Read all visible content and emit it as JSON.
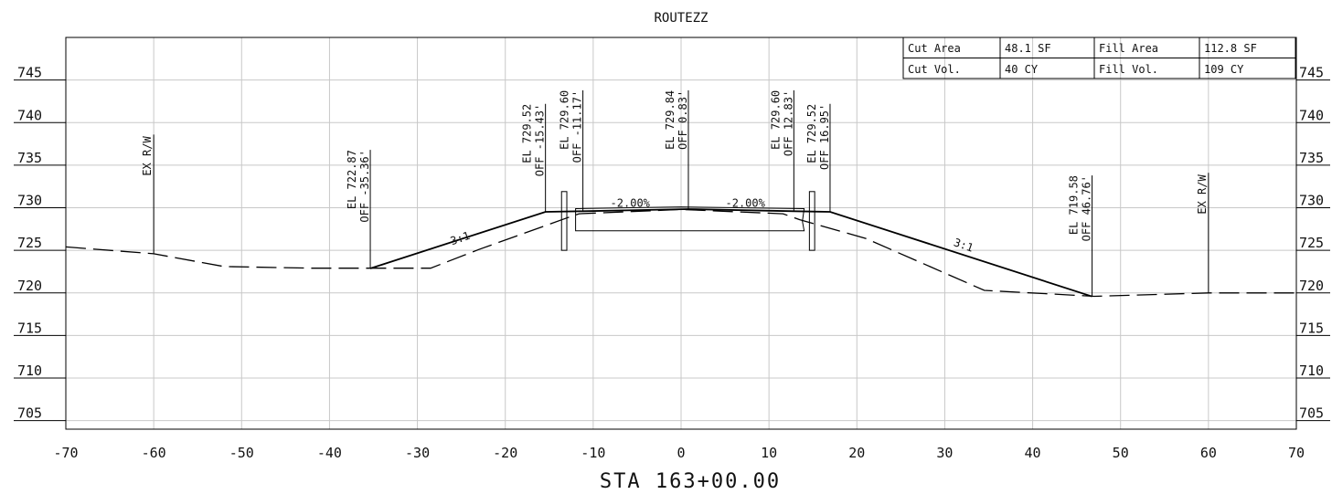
{
  "title": "ROUTEZZ",
  "station": "STA 163+00.00",
  "quantities": [
    [
      "Cut Area",
      "48.1 SF",
      "Fill Area",
      "112.8 SF"
    ],
    [
      "Cut Vol.",
      "40 CY",
      "Fill Vol.",
      "109 CY"
    ]
  ],
  "axes": {
    "x_ticks": [
      -70,
      -60,
      -50,
      -40,
      -30,
      -20,
      -10,
      0,
      10,
      20,
      30,
      40,
      50,
      60,
      70
    ],
    "x_range": [
      -70,
      70
    ],
    "y_ticks": [
      705,
      710,
      715,
      720,
      725,
      730,
      735,
      740,
      745
    ],
    "y_range": [
      704,
      750
    ],
    "grid": true
  },
  "existing_ground": [
    [
      -70,
      725.4
    ],
    [
      -60,
      724.6
    ],
    [
      -52,
      723.1
    ],
    [
      -42,
      722.9
    ],
    [
      -28.5,
      722.9
    ],
    [
      -23,
      725.1
    ],
    [
      -13,
      728.8
    ],
    [
      -11.6,
      729.3
    ],
    [
      0,
      729.8
    ],
    [
      11.6,
      729.3
    ],
    [
      13.5,
      728.6
    ],
    [
      21,
      726.4
    ],
    [
      34.5,
      720.3
    ],
    [
      47,
      719.6
    ],
    [
      60,
      720.0
    ],
    [
      70,
      720.0
    ]
  ],
  "design_section": [
    [
      -35.36,
      722.87
    ],
    [
      -15.43,
      729.52
    ],
    [
      -11.17,
      729.6
    ],
    [
      0.83,
      729.84
    ],
    [
      12.83,
      729.6
    ],
    [
      16.95,
      729.52
    ],
    [
      46.76,
      719.58
    ]
  ],
  "pavement_box": [
    [
      -12,
      729.9
    ],
    [
      0,
      730.1
    ],
    [
      14,
      729.9
    ],
    [
      13.8,
      728.4
    ],
    [
      14,
      727.3
    ],
    [
      -12,
      727.3
    ],
    [
      -12,
      728.4
    ]
  ],
  "curb_left": [
    -13.6,
    -13.0,
    725.0,
    731.9
  ],
  "curb_right": [
    14.6,
    15.2,
    725.0,
    731.9
  ],
  "right_of_way": [
    {
      "x": -60,
      "y_bottom": 724.6,
      "y_top": 738.6,
      "label": "EX R/W"
    },
    {
      "x": 60,
      "y_bottom": 720.0,
      "y_top": 734.1,
      "label": "EX R/W"
    }
  ],
  "point_labels": [
    {
      "x": -35.36,
      "y": 722.87,
      "top": 736.8,
      "el": "EL 722.87",
      "off": "OFF -35.36'"
    },
    {
      "x": -15.43,
      "y": 729.52,
      "top": 742.2,
      "el": "EL 729.52",
      "off": "OFF -15.43'"
    },
    {
      "x": -11.17,
      "y": 729.6,
      "top": 743.8,
      "el": "EL 729.60",
      "off": "OFF -11.17'"
    },
    {
      "x": 0.83,
      "y": 729.84,
      "top": 743.8,
      "el": "EL 729.84",
      "off": "OFF 0.83'"
    },
    {
      "x": 12.83,
      "y": 729.6,
      "top": 743.8,
      "el": "EL 729.60",
      "off": "OFF 12.83'"
    },
    {
      "x": 16.95,
      "y": 729.52,
      "top": 742.2,
      "el": "EL 729.52",
      "off": "OFF 16.95'"
    },
    {
      "x": 46.76,
      "y": 719.58,
      "top": 733.8,
      "el": "EL 719.58",
      "off": "OFF 46.76'"
    }
  ],
  "slope_labels": [
    {
      "text": "-2.00%",
      "x": -5.8,
      "y": 730.1,
      "angle": 0
    },
    {
      "text": "-2.00%",
      "x": 7.3,
      "y": 730.1,
      "angle": 0
    },
    {
      "text": "3:1",
      "x": -25,
      "y": 726.0,
      "angle": -19
    },
    {
      "text": "3:1",
      "x": 32,
      "y": 725.2,
      "angle": 19
    }
  ]
}
